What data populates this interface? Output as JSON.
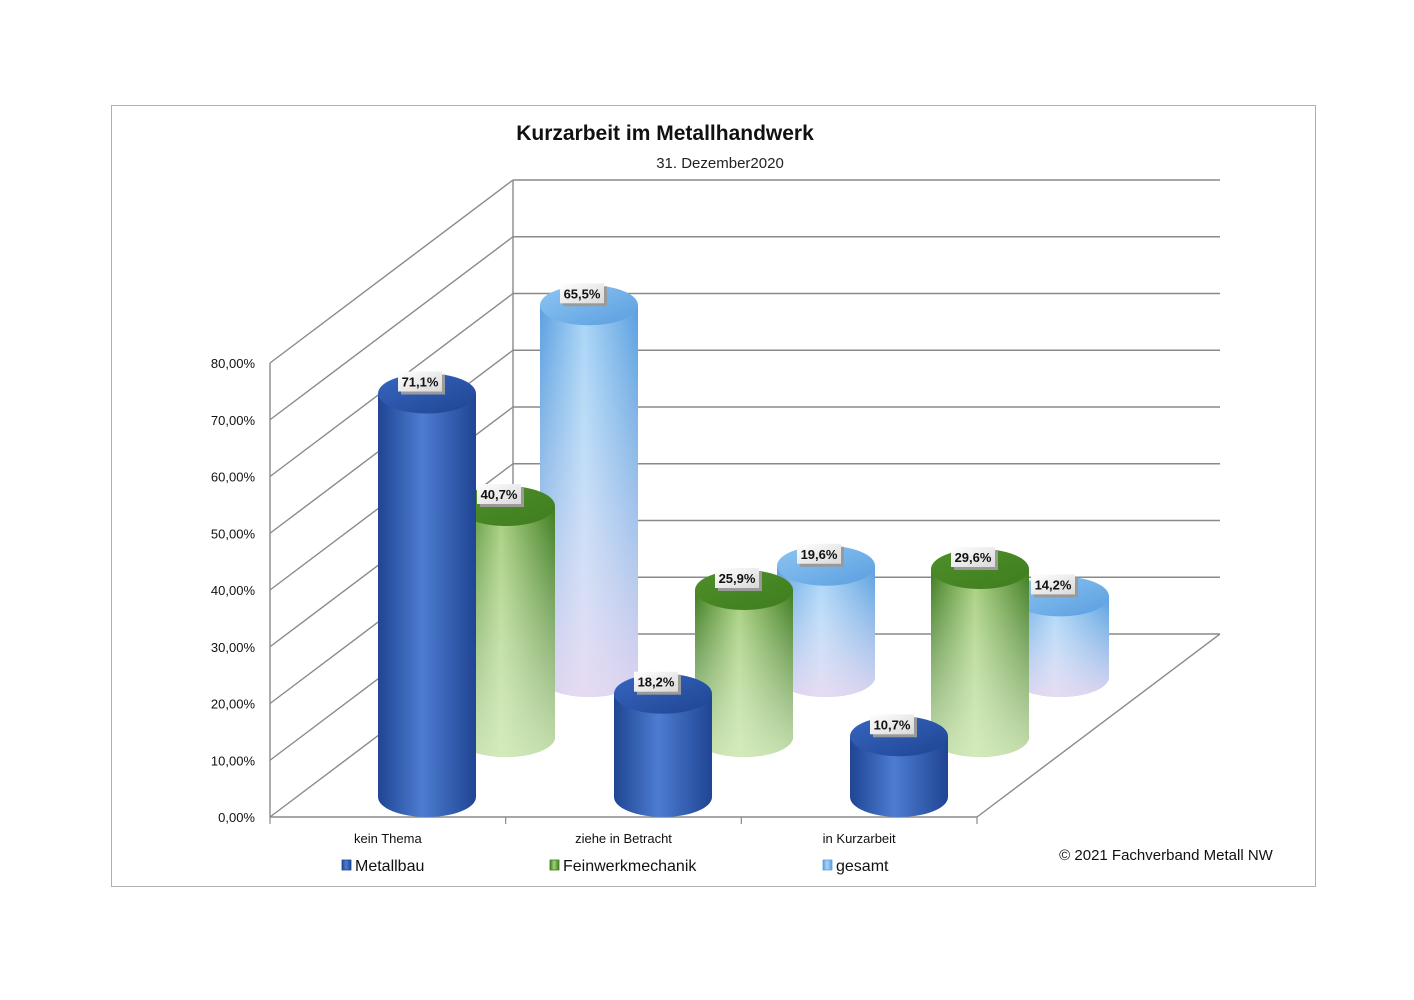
{
  "chart_data": {
    "type": "bar",
    "title": "Kurzarbeit im Metallhandwerk",
    "subtitle": "31. Dezember2020",
    "categories": [
      "kein Thema",
      "ziehe in Betracht",
      "in Kurzarbeit"
    ],
    "series": [
      {
        "name": "Metallbau",
        "values": [
          71.1,
          18.2,
          10.7
        ],
        "labels": [
          "71,1%",
          "18,2%",
          "10,7%"
        ],
        "color": "#2f5fb3"
      },
      {
        "name": "Feinwerkmechanik",
        "values": [
          40.7,
          25.9,
          29.6
        ],
        "labels": [
          "40,7%",
          "25,9%",
          "29,6%"
        ],
        "color": "#5a9a2e"
      },
      {
        "name": "gesamt",
        "values": [
          65.5,
          19.6,
          14.2
        ],
        "labels": [
          "65,5%",
          "19,6%",
          "14,2%"
        ],
        "color": "#7fb8ea"
      }
    ],
    "y_ticks": [
      "0,00%",
      "10,00%",
      "20,00%",
      "30,00%",
      "40,00%",
      "50,00%",
      "60,00%",
      "70,00%",
      "80,00%"
    ],
    "ylim": [
      0,
      80
    ],
    "legend_position": "bottom",
    "grid": true,
    "copyright": "© 2021 Fachverband Metall NW"
  }
}
